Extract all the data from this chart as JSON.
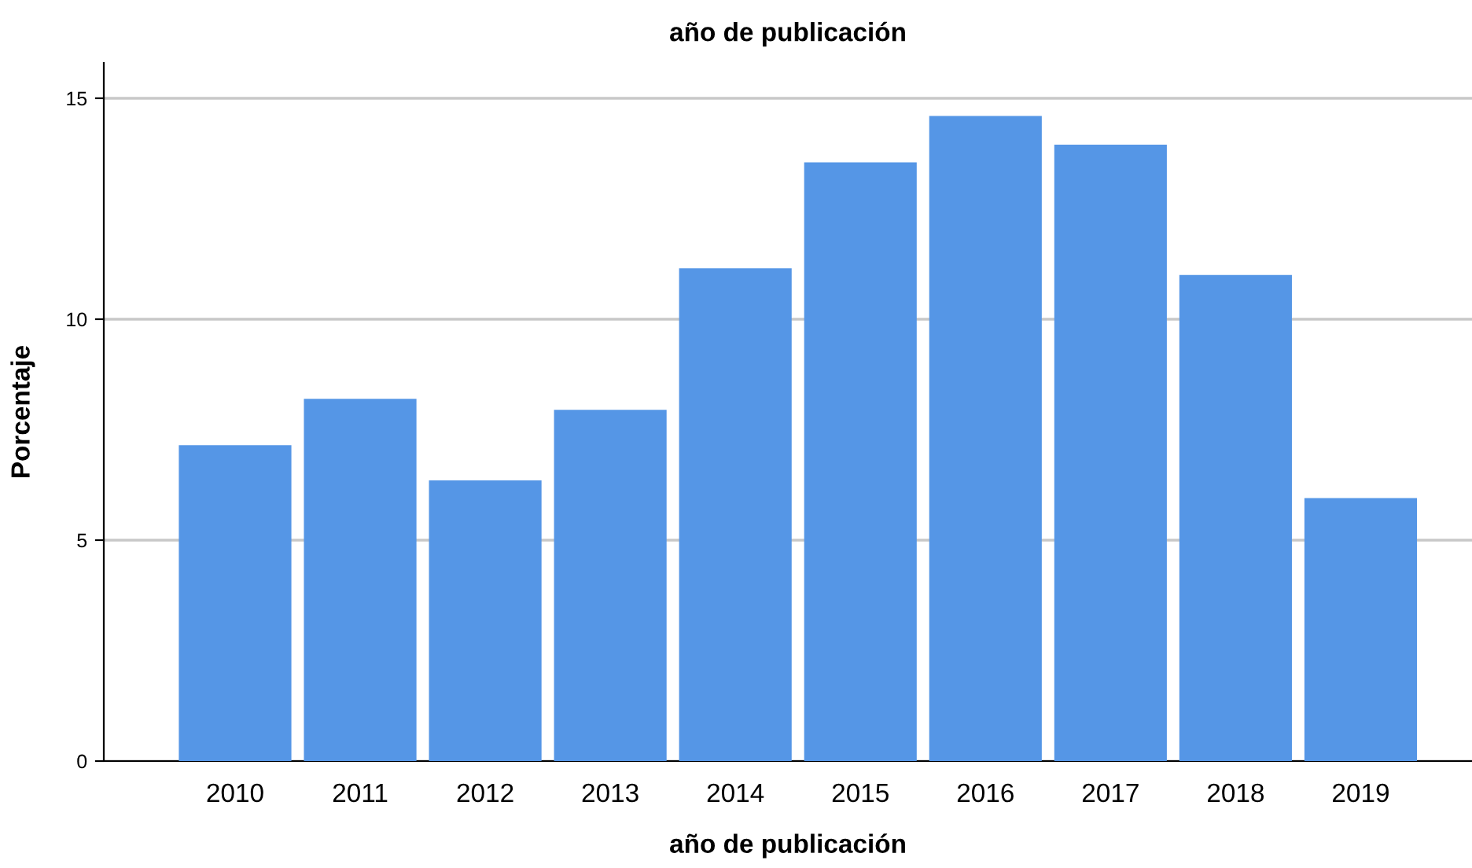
{
  "chart_data": {
    "type": "bar",
    "title": "año de publicación",
    "xlabel": "año de publicación",
    "ylabel": "Porcentaje",
    "categories": [
      "2010",
      "2011",
      "2012",
      "2013",
      "2014",
      "2015",
      "2016",
      "2017",
      "2018",
      "2019"
    ],
    "values": [
      7.15,
      8.2,
      6.35,
      7.95,
      11.15,
      13.55,
      14.6,
      13.95,
      11.0,
      5.95
    ],
    "color": "#5596e6",
    "ylim": [
      0,
      15.8
    ],
    "yticks": [
      0,
      5,
      10,
      15
    ],
    "grid": "y",
    "legend": false
  }
}
